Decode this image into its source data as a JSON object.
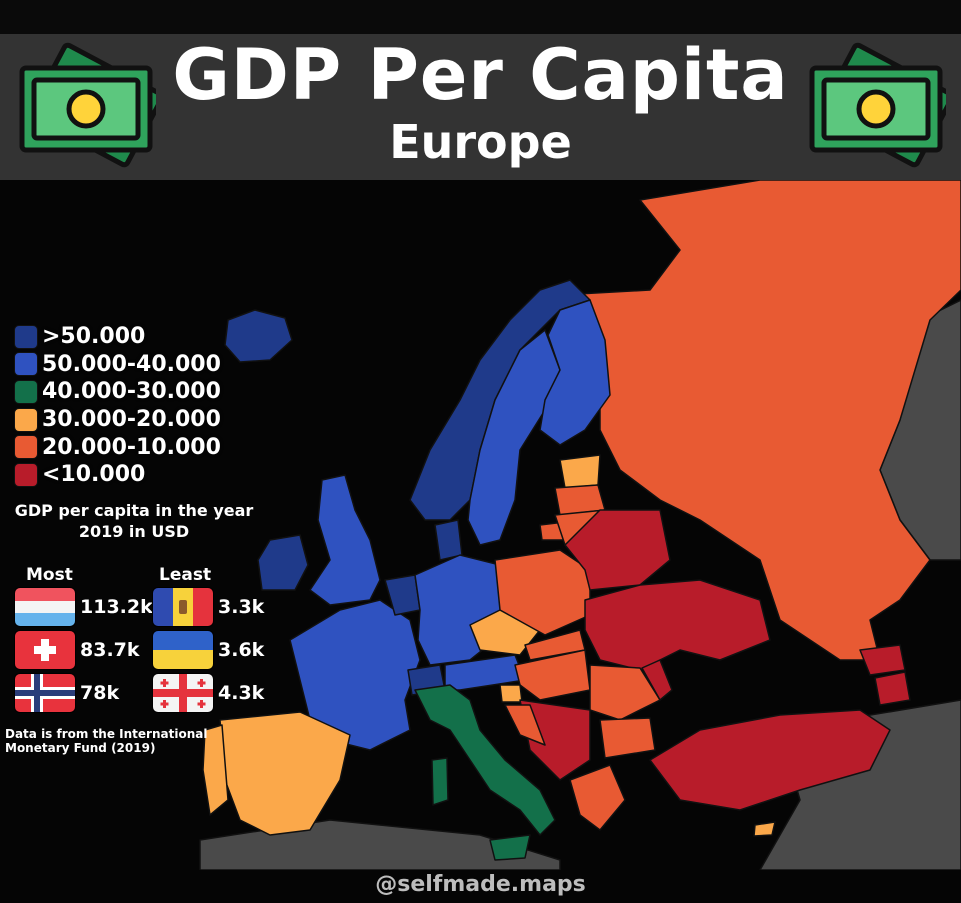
{
  "header": {
    "title": "GDP Per Capita",
    "subtitle": "Europe"
  },
  "legend": {
    "items": [
      {
        "label": ">50.000",
        "color": "#1f3a8a"
      },
      {
        "label": "50.000-40.000",
        "color": "#2f52c0"
      },
      {
        "label": "40.000-30.000",
        "color": "#13704a"
      },
      {
        "label": "30.000-20.000",
        "color": "#fba84a"
      },
      {
        "label": "20.000-10.000",
        "color": "#e85a33"
      },
      {
        "label": "<10.000",
        "color": "#b81c2a"
      }
    ],
    "note": "GDP per capita in the year 2019 in USD"
  },
  "ranking": {
    "most_label": "Most",
    "least_label": "Least",
    "most": [
      {
        "flag": "luxembourg-flag",
        "value": "113.2k"
      },
      {
        "flag": "switzerland-flag",
        "value": "83.7k"
      },
      {
        "flag": "norway-flag",
        "value": "78k"
      }
    ],
    "least": [
      {
        "flag": "moldova-flag",
        "value": "3.3k"
      },
      {
        "flag": "ukraine-flag",
        "value": "3.6k"
      },
      {
        "flag": "georgia-flag",
        "value": "4.3k"
      }
    ]
  },
  "source": "Data is from the International Monetary Fund (2019)",
  "credit": "@selfmade.maps",
  "icons": [
    "money-bill-icon",
    "money-bill-icon"
  ],
  "colors": {
    "no_data": "#4a4a4a",
    "sea": "#050505",
    "header_bg": "#333333"
  }
}
